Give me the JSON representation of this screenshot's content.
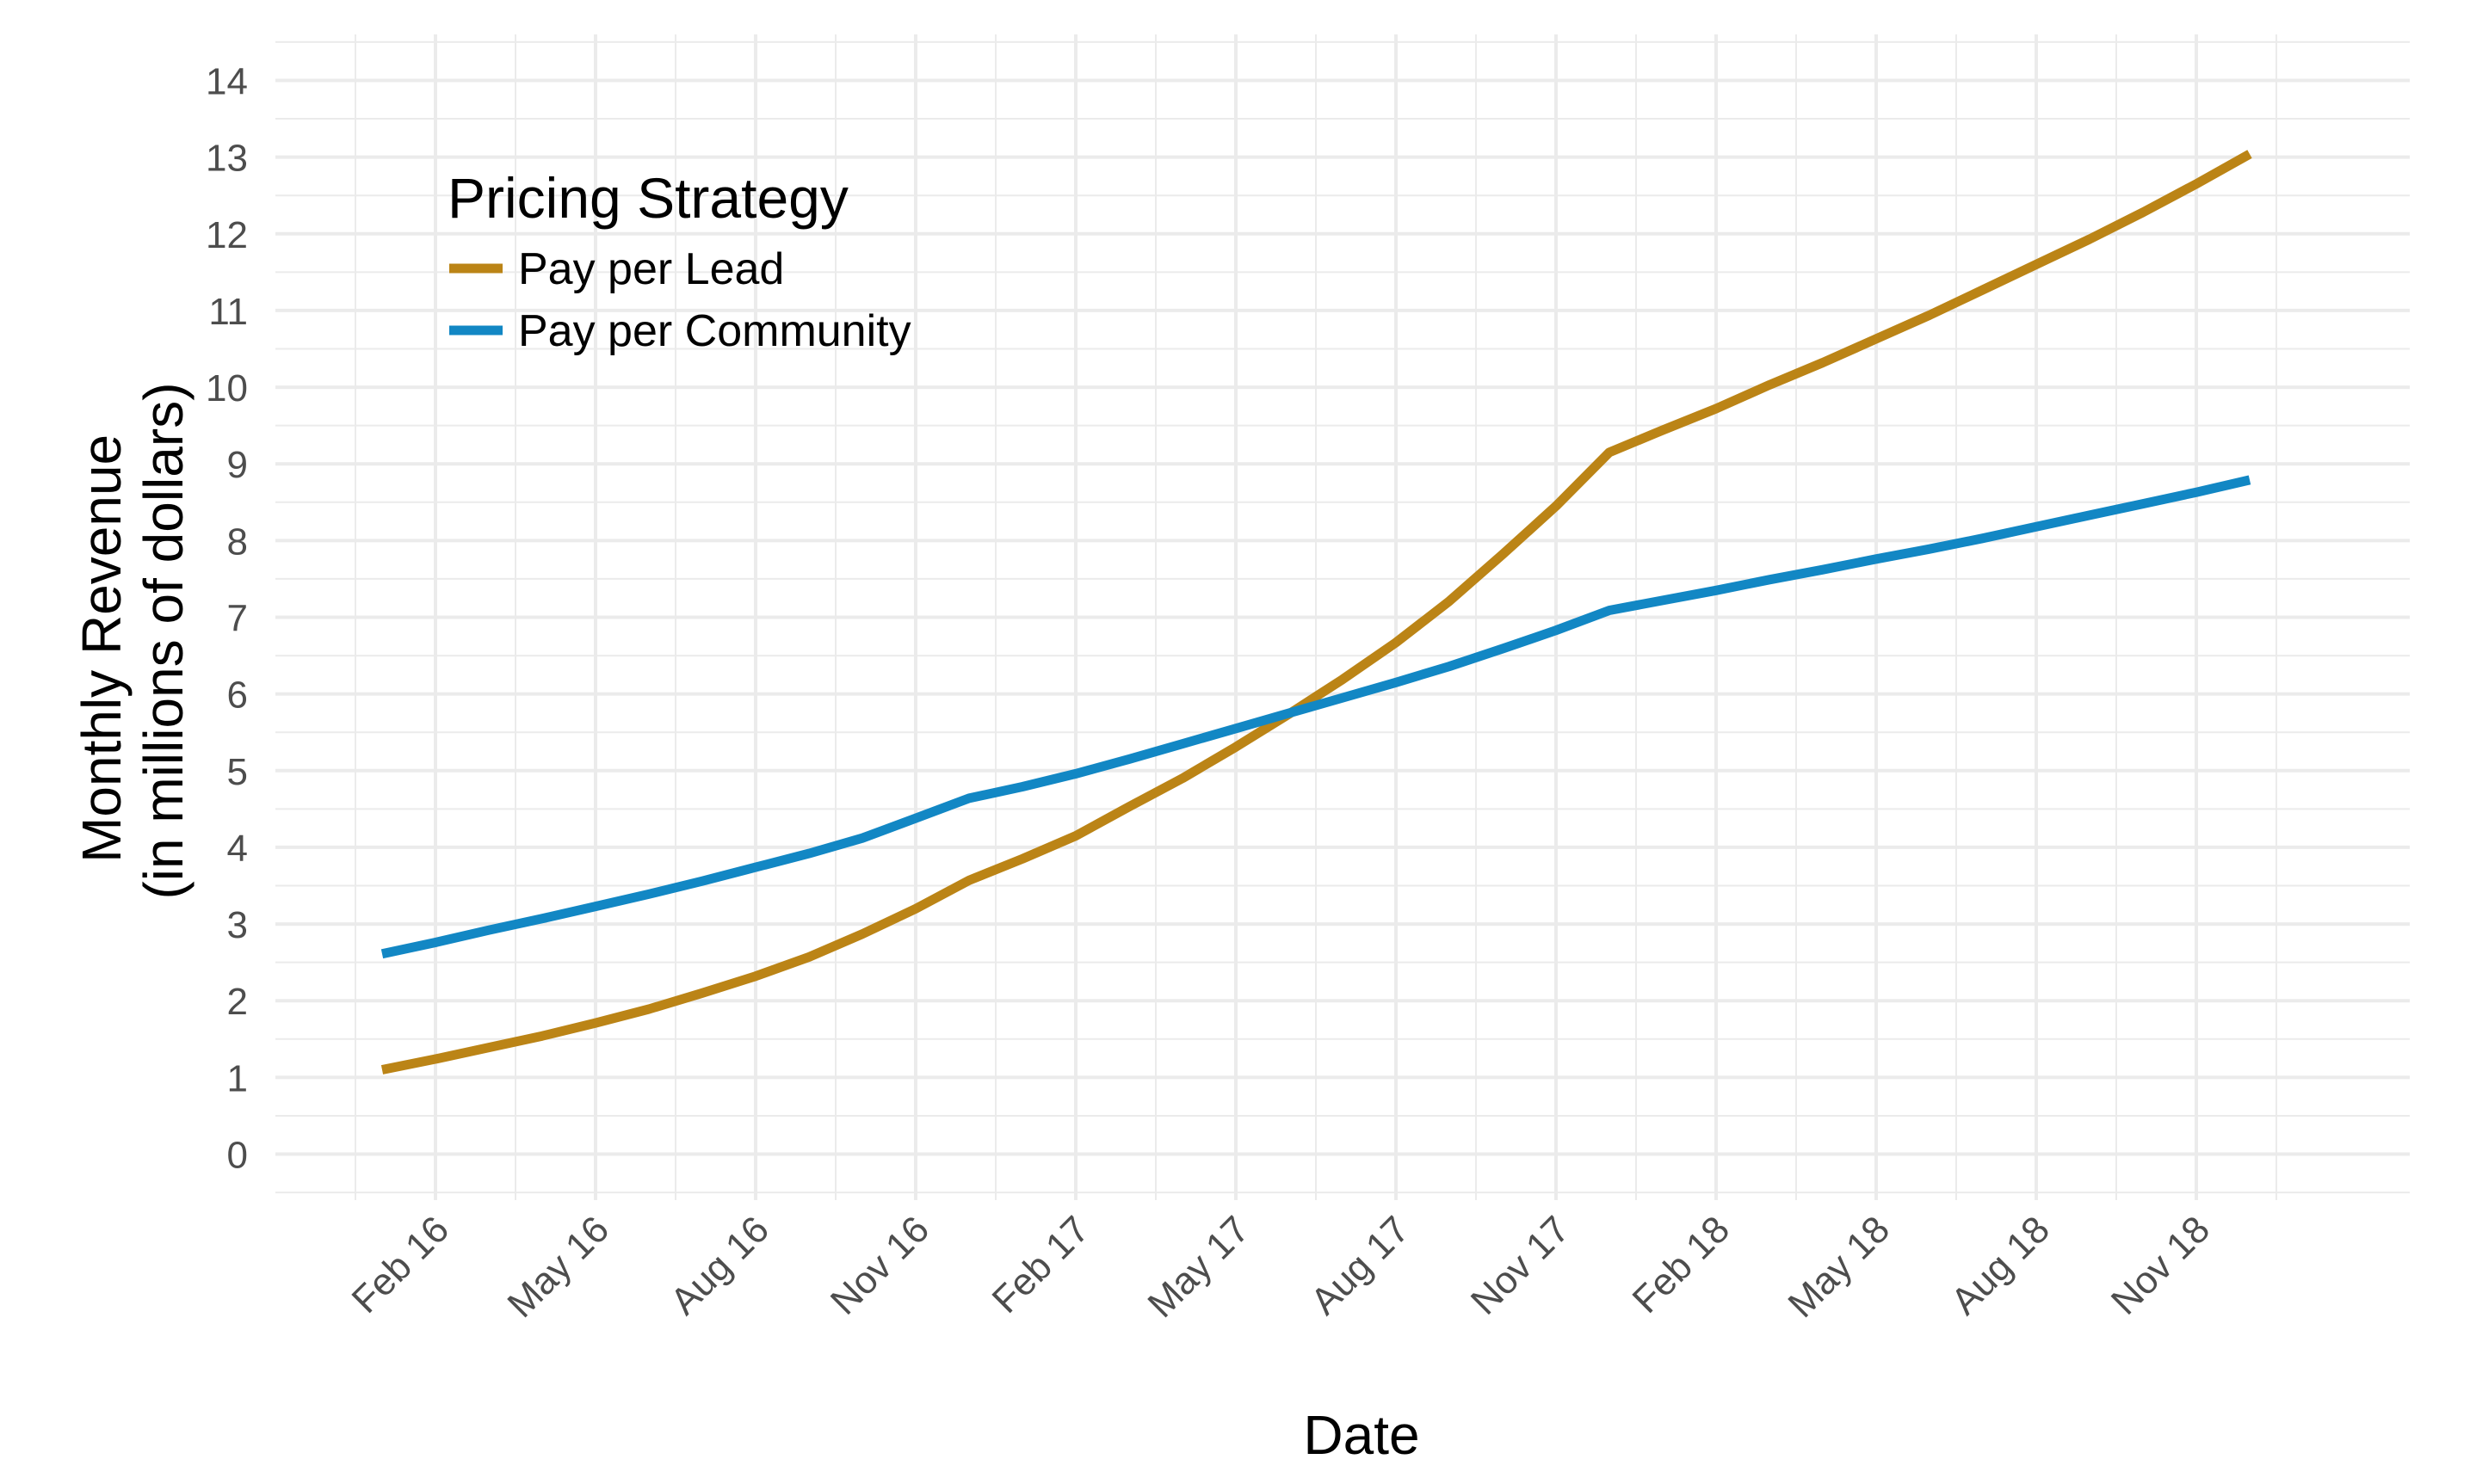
{
  "chart_data": {
    "type": "line",
    "xlabel": "Date",
    "ylabel": [
      "Monthly Revenue",
      "(in millions of dollars)"
    ],
    "ylim": [
      -0.6,
      14.6
    ],
    "yticks": [
      0,
      1,
      2,
      3,
      4,
      5,
      6,
      7,
      8,
      9,
      10,
      11,
      12,
      13,
      14
    ],
    "x_ticks": [
      "Feb 16",
      "May 16",
      "Aug 16",
      "Nov 16",
      "Feb 17",
      "May 17",
      "Aug 17",
      "Nov 17",
      "Feb 18",
      "May 18",
      "Aug 18",
      "Nov 18"
    ],
    "x_dates": [
      "2016-01",
      "2016-02",
      "2016-03",
      "2016-04",
      "2016-05",
      "2016-06",
      "2016-07",
      "2016-08",
      "2016-09",
      "2016-10",
      "2016-11",
      "2016-12",
      "2017-01",
      "2017-02",
      "2017-03",
      "2017-04",
      "2017-05",
      "2017-06",
      "2017-07",
      "2017-08",
      "2017-09",
      "2017-10",
      "2017-11",
      "2017-12",
      "2018-01",
      "2018-02",
      "2018-03",
      "2018-04",
      "2018-05",
      "2018-06",
      "2018-07",
      "2018-08",
      "2018-09",
      "2018-10",
      "2018-11",
      "2018-12"
    ],
    "x_range": [
      "2015-11",
      "2019-03"
    ],
    "grid": true,
    "legend": {
      "title": "Pricing Strategy",
      "position": "top-left"
    },
    "series": [
      {
        "name": "Pay per Lead",
        "color": "#BB8416",
        "values": [
          1.1,
          1.24,
          1.39,
          1.54,
          1.71,
          1.89,
          2.1,
          2.32,
          2.57,
          2.87,
          3.2,
          3.57,
          3.85,
          4.15,
          4.53,
          4.9,
          5.31,
          5.74,
          6.19,
          6.67,
          7.21,
          7.82,
          8.45,
          9.15,
          9.44,
          9.72,
          10.03,
          10.32,
          10.63,
          10.94,
          11.27,
          11.6,
          11.93,
          12.28,
          12.65,
          13.04
        ]
      },
      {
        "name": "Pay per Community",
        "color": "#1287C4",
        "values": [
          2.61,
          2.76,
          2.92,
          3.07,
          3.23,
          3.39,
          3.56,
          3.74,
          3.92,
          4.12,
          4.38,
          4.64,
          4.79,
          4.96,
          5.15,
          5.35,
          5.55,
          5.75,
          5.95,
          6.15,
          6.36,
          6.59,
          6.83,
          7.09,
          7.22,
          7.35,
          7.49,
          7.62,
          7.76,
          7.89,
          8.03,
          8.18,
          8.33,
          8.48,
          8.63,
          8.79
        ]
      }
    ]
  }
}
